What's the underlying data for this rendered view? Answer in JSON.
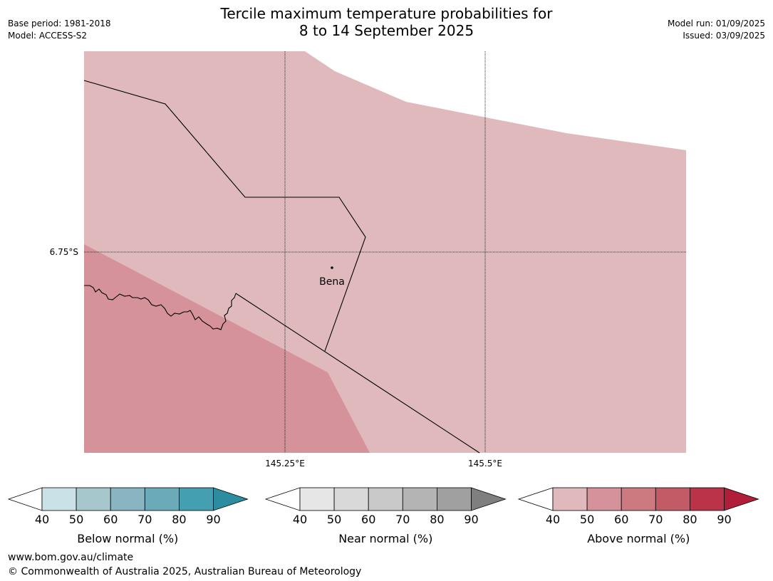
{
  "header": {
    "title_line1": "Tercile maximum temperature probabilities for",
    "title_line2": "8 to 14 September 2025",
    "base_period": "Base period: 1981-2018",
    "model": "Model: ACCESS-S2",
    "model_run": "Model run: 01/09/2025",
    "issued": "Issued: 03/09/2025"
  },
  "map": {
    "lat_label": "6.75°S",
    "lon_labels": [
      "145.25°E",
      "145.5°E"
    ],
    "town": "Bena",
    "colors": {
      "above_40_50": "#e0b9bd",
      "above_50_60": "#d6929a"
    }
  },
  "colorbars": [
    {
      "label": "Below normal (%)",
      "ticks": [
        "40",
        "50",
        "60",
        "70",
        "80",
        "90"
      ],
      "colors": [
        "#cae2e7",
        "#a6c8cc",
        "#89b5c2",
        "#6babb9",
        "#44a0b1",
        "#2c8da0"
      ]
    },
    {
      "label": "Near normal (%)",
      "ticks": [
        "40",
        "50",
        "60",
        "70",
        "80",
        "90"
      ],
      "colors": [
        "#e6e6e6",
        "#d9d9d9",
        "#c9c9c9",
        "#b4b4b4",
        "#a0a0a0",
        "#7f7f7f"
      ]
    },
    {
      "label": "Above normal (%)",
      "ticks": [
        "40",
        "50",
        "60",
        "70",
        "80",
        "90"
      ],
      "colors": [
        "#e0b9bd",
        "#d6929a",
        "#cc7a80",
        "#c35b67",
        "#bb3349",
        "#b01e3a"
      ]
    }
  ],
  "footer": {
    "url": "www.bom.gov.au/climate",
    "copyright": "© Commonwealth of Australia 2025, Australian Bureau of Meteorology"
  }
}
